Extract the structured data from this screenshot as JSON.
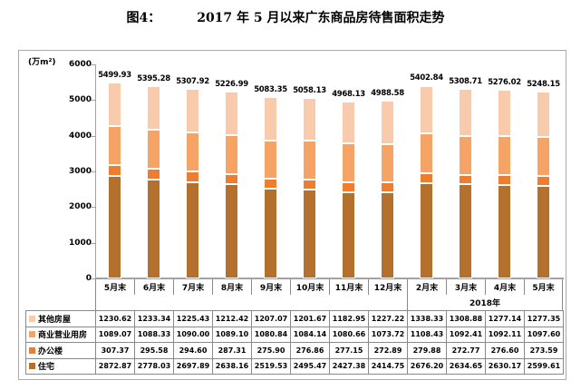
{
  "title": {
    "prefix": "图4：",
    "text": "2017 年 5 月以来广东商品房待售面积走势"
  },
  "chart_data": {
    "type": "bar",
    "stacked": true,
    "title": "2017 年 5 月以来广东商品房待售面积走势",
    "unit_label": "(万m²)",
    "ylabel": "万m²",
    "ylim": [
      0,
      6000
    ],
    "yticks": [
      0,
      1000,
      2000,
      3000,
      4000,
      5000,
      6000
    ],
    "grid": false,
    "legend_position": "table-left",
    "categories": [
      "5月末",
      "6月末",
      "7月末",
      "8月末",
      "9月末",
      "10月末",
      "11月末",
      "12月末",
      "2月末",
      "3月末",
      "4月末",
      "5月末"
    ],
    "year_groups": [
      {
        "label": "",
        "span": 8
      },
      {
        "label": "2018年",
        "span": 4
      }
    ],
    "totals": [
      5499.93,
      5395.28,
      5307.92,
      5226.99,
      5083.35,
      5058.13,
      4968.13,
      4988.58,
      5402.84,
      5308.71,
      5276.02,
      5248.15
    ],
    "series": [
      {
        "name": "其他房屋",
        "color": "#F8CBAD",
        "values": [
          1230.62,
          1233.34,
          1225.43,
          1212.42,
          1207.07,
          1201.67,
          1182.95,
          1227.22,
          1338.33,
          1308.88,
          1277.14,
          1277.35
        ]
      },
      {
        "name": "商业营业用房",
        "color": "#F5A465",
        "values": [
          1089.07,
          1088.33,
          1090.0,
          1089.1,
          1080.84,
          1084.14,
          1080.66,
          1073.72,
          1108.43,
          1092.41,
          1092.11,
          1097.6
        ]
      },
      {
        "name": "办公楼",
        "color": "#ED7D31",
        "values": [
          307.37,
          295.58,
          294.6,
          287.31,
          275.9,
          276.86,
          277.15,
          272.89,
          279.88,
          272.77,
          276.6,
          273.59
        ]
      },
      {
        "name": "住宅",
        "color": "#B4702D",
        "values": [
          2872.87,
          2778.03,
          2697.89,
          2638.16,
          2519.53,
          2495.47,
          2427.38,
          2414.75,
          2676.2,
          2634.65,
          2630.17,
          2599.61
        ]
      }
    ]
  }
}
